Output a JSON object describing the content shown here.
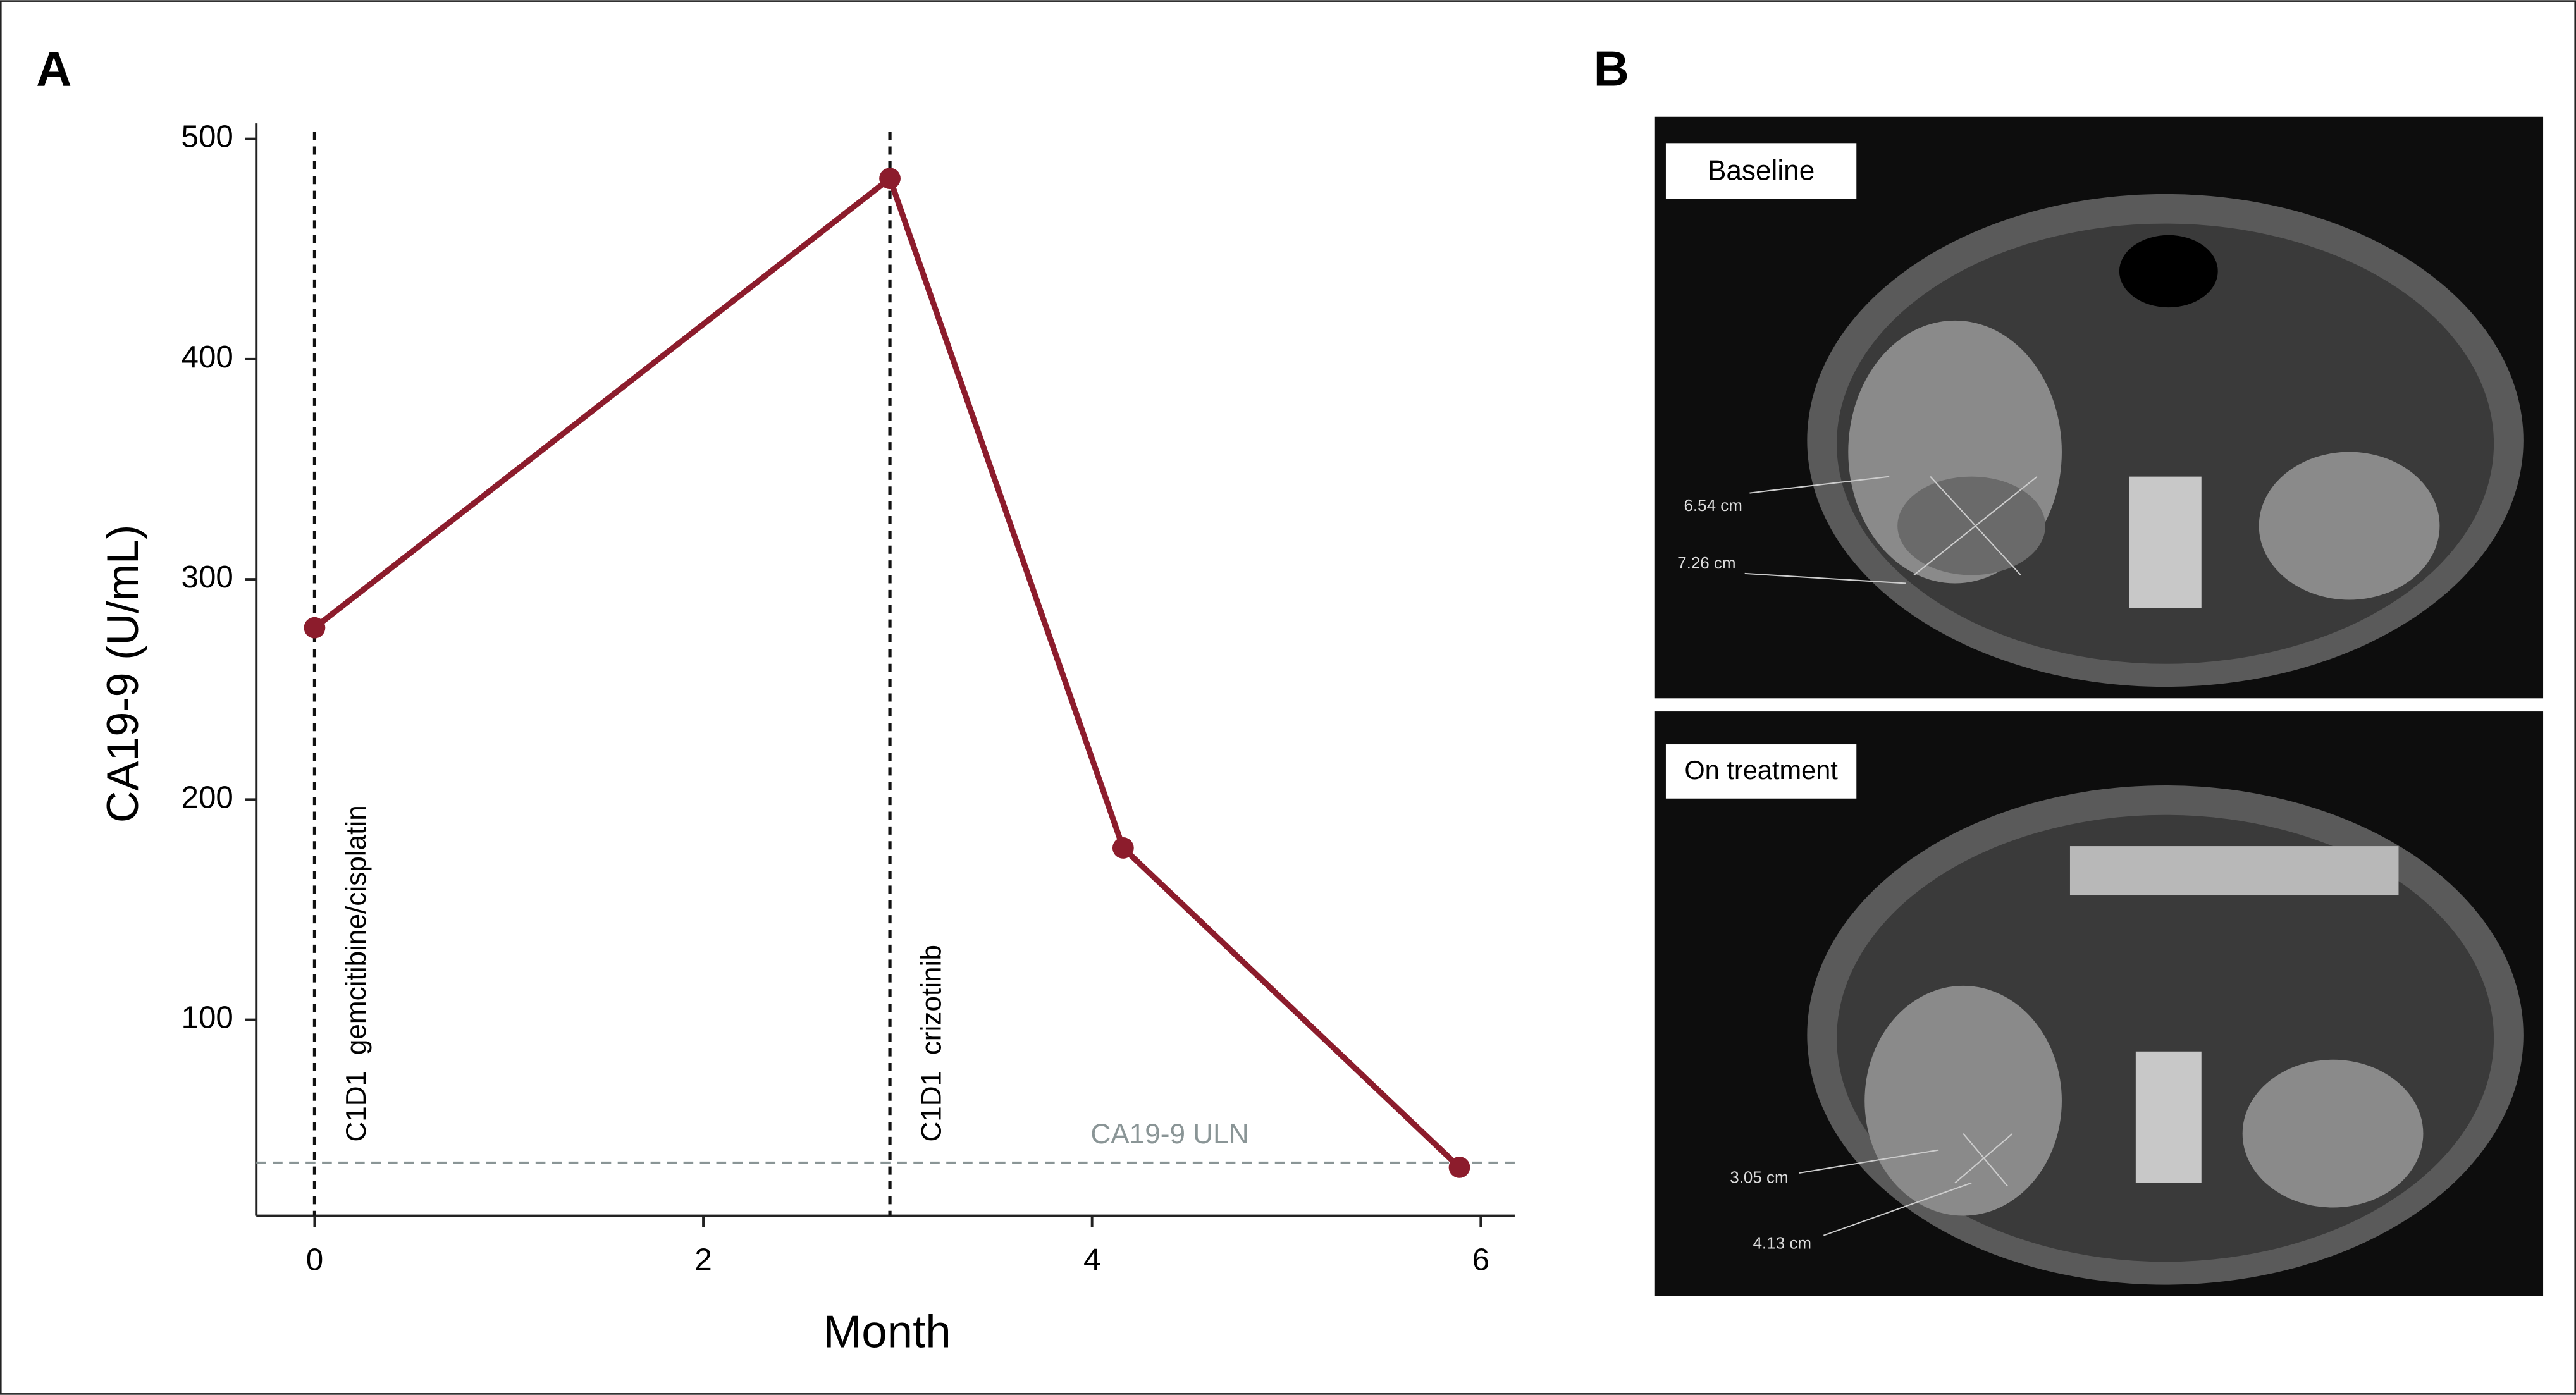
{
  "chart_data": {
    "type": "line",
    "panel_label": "A",
    "xlabel": "Month",
    "ylabel": "CA19-9 (U/mL)",
    "x": [
      0,
      2.96,
      4.16,
      5.89
    ],
    "series": [
      {
        "name": "CA19-9",
        "color": "#8c1c2c",
        "values": [
          278,
          482,
          178,
          33
        ]
      }
    ],
    "xlim": [
      -0.3,
      6.2
    ],
    "xticks": [
      0,
      2,
      4,
      6
    ],
    "ylim": [
      11,
      507
    ],
    "yticks": [
      100,
      200,
      300,
      400,
      500
    ],
    "vlines": [
      {
        "x": 0,
        "label": "C1D1  gemcitibine/cisplatin"
      },
      {
        "x": 2.96,
        "label": "C1D1  crizotinib"
      }
    ],
    "hlines": [
      {
        "y": 35,
        "label": "CA19-9 ULN",
        "color": "#8a9596"
      }
    ]
  },
  "panel_b": {
    "label": "B",
    "images": [
      {
        "label": "Baseline",
        "measurements": [
          "6.54 cm",
          "7.26 cm"
        ]
      },
      {
        "label": "On treatment",
        "measurements": [
          "3.05 cm",
          "4.13 cm"
        ]
      }
    ]
  }
}
